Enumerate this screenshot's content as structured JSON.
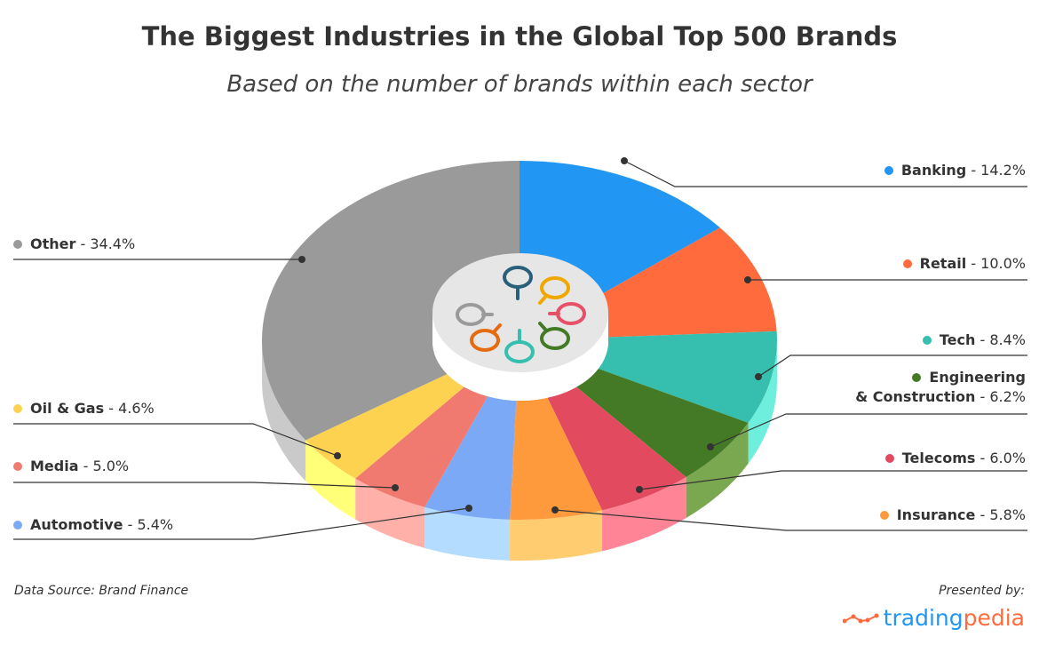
{
  "title": "The Biggest Industries in the Global Top 500 Brands",
  "subtitle": "Based on the number of brands within each sector",
  "source": "Data Source: Brand Finance",
  "presented_by": "Presented by:",
  "logo": {
    "part1": "trading",
    "part2": "pedia",
    "color1": "#2196f3",
    "color2": "#ff6b3d"
  },
  "chart_data": {
    "type": "pie",
    "style": "3d-donut",
    "title": "The Biggest Industries in the Global Top 500 Brands",
    "subtitle": "Based on the number of brands within each sector",
    "unit": "%",
    "slices": [
      {
        "name": "Banking",
        "value": 14.2,
        "label": "- 14.2%",
        "color": "#2196f3",
        "side": "#7cc0f8"
      },
      {
        "name": "Retail",
        "value": 10.0,
        "label": "- 10.0%",
        "color": "#ff6b3d",
        "side": "#ffa585"
      },
      {
        "name": "Tech",
        "value": 8.4,
        "label": "- 8.4%",
        "color": "#36bfae",
        "side": "#6eeedc"
      },
      {
        "name": "Engineering & Construction",
        "line1": "Engineering",
        "line2": "& Construction",
        "value": 6.2,
        "label": "- 6.2%",
        "color": "#447a26",
        "side": "#7aa850"
      },
      {
        "name": "Telecoms",
        "value": 6.0,
        "label": "- 6.0%",
        "color": "#e24b5f",
        "side": "#ff8496"
      },
      {
        "name": "Insurance",
        "value": 5.8,
        "label": "- 5.8%",
        "color": "#ff9a3c",
        "side": "#ffcd70"
      },
      {
        "name": "Automotive",
        "value": 5.4,
        "label": "- 5.4%",
        "color": "#7ba9f5",
        "side": "#b3dcff"
      },
      {
        "name": "Media",
        "value": 5.0,
        "label": "- 5.0%",
        "color": "#f07a70",
        "side": "#ffb0a8"
      },
      {
        "name": "Oil & Gas",
        "value": 4.6,
        "label": "- 4.6%",
        "color": "#fdd250",
        "side": "#ffff78"
      },
      {
        "name": "Other",
        "value": 34.4,
        "label": "- 34.4%",
        "color": "#9a9a9a",
        "side": "#cacaca"
      }
    ],
    "legend": "leader-line labels",
    "center_icon": "magnifying-glasses-circle-icon",
    "center_icon_colors": [
      "#2a5f7a",
      "#f0a800",
      "#e65068",
      "#447a26",
      "#36bfae",
      "#e66a10",
      "#9a9a9a"
    ]
  }
}
